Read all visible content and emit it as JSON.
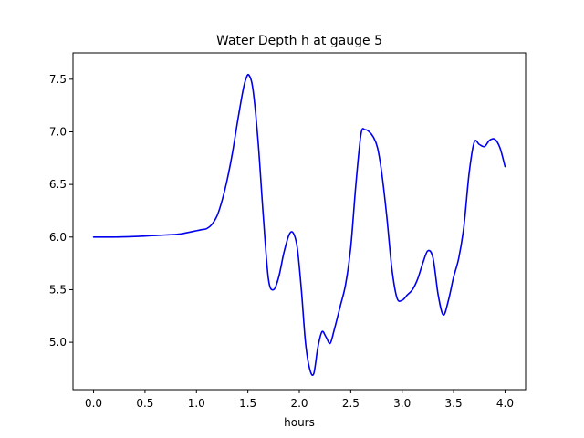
{
  "chart_data": {
    "type": "line",
    "title": "Water Depth h at gauge 5",
    "xlabel": "hours",
    "ylabel": "",
    "xlim": [
      -0.2,
      4.2
    ],
    "ylim": [
      4.55,
      7.75
    ],
    "xticks": [
      0.0,
      0.5,
      1.0,
      1.5,
      2.0,
      2.5,
      3.0,
      3.5,
      4.0
    ],
    "xtick_labels": [
      "0.0",
      "0.5",
      "1.0",
      "1.5",
      "2.0",
      "2.5",
      "3.0",
      "3.5",
      "4.0"
    ],
    "yticks": [
      5.0,
      5.5,
      6.0,
      6.5,
      7.0,
      7.5
    ],
    "ytick_labels": [
      "5.0",
      "5.5",
      "6.0",
      "6.5",
      "7.0",
      "7.5"
    ],
    "grid": false,
    "colors": {
      "line": "#0000ee"
    },
    "series": [
      {
        "x": [
          0.0,
          0.2,
          0.4,
          0.5,
          0.6,
          0.7,
          0.8,
          0.85,
          0.9,
          0.95,
          1.0,
          1.05,
          1.1,
          1.15,
          1.2,
          1.25,
          1.3,
          1.35,
          1.4,
          1.45,
          1.48,
          1.51,
          1.55,
          1.6,
          1.65,
          1.7,
          1.75,
          1.8,
          1.85,
          1.9,
          1.94,
          1.98,
          2.02,
          2.06,
          2.1,
          2.14,
          2.18,
          2.22,
          2.26,
          2.3,
          2.34,
          2.4,
          2.45,
          2.5,
          2.55,
          2.6,
          2.64,
          2.68,
          2.72,
          2.76,
          2.8,
          2.85,
          2.9,
          2.95,
          3.0,
          3.05,
          3.1,
          3.15,
          3.2,
          3.25,
          3.3,
          3.35,
          3.4,
          3.45,
          3.5,
          3.55,
          3.6,
          3.65,
          3.7,
          3.75,
          3.8,
          3.85,
          3.9,
          3.95,
          4.0
        ],
        "y": [
          6.0,
          6.0,
          6.005,
          6.01,
          6.015,
          6.02,
          6.025,
          6.03,
          6.04,
          6.05,
          6.06,
          6.07,
          6.08,
          6.12,
          6.2,
          6.35,
          6.55,
          6.8,
          7.1,
          7.38,
          7.5,
          7.54,
          7.4,
          6.9,
          6.2,
          5.6,
          5.5,
          5.62,
          5.85,
          6.02,
          6.04,
          5.9,
          5.5,
          5.0,
          4.75,
          4.7,
          4.95,
          5.1,
          5.05,
          4.99,
          5.12,
          5.35,
          5.55,
          5.9,
          6.5,
          6.98,
          7.02,
          7.0,
          6.95,
          6.85,
          6.62,
          6.2,
          5.7,
          5.42,
          5.4,
          5.45,
          5.5,
          5.6,
          5.75,
          5.87,
          5.8,
          5.45,
          5.26,
          5.4,
          5.62,
          5.8,
          6.1,
          6.6,
          6.9,
          6.88,
          6.86,
          6.92,
          6.93,
          6.85,
          6.67
        ]
      }
    ]
  }
}
